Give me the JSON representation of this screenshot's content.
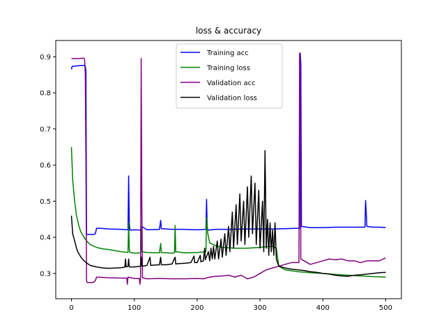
{
  "chart_data": {
    "type": "line",
    "title": "loss & accuracy",
    "xlabel": "",
    "ylabel": "",
    "xlim": [
      -25,
      525
    ],
    "ylim": [
      0.23,
      0.945
    ],
    "xticks": [
      0,
      100,
      200,
      300,
      400,
      500
    ],
    "yticks": [
      0.3,
      0.4,
      0.5,
      0.6,
      0.7,
      0.8,
      0.9
    ],
    "grid": false,
    "legend": "top-center",
    "series": [
      {
        "name": "Training acc",
        "color": "#0000ff",
        "points": [
          [
            0,
            0.865
          ],
          [
            1,
            0.873
          ],
          [
            5,
            0.874
          ],
          [
            10,
            0.875
          ],
          [
            15,
            0.876
          ],
          [
            20,
            0.876
          ],
          [
            22,
            0.874
          ],
          [
            23,
            0.86
          ],
          [
            24,
            0.408
          ],
          [
            30,
            0.408
          ],
          [
            36,
            0.408
          ],
          [
            38,
            0.41
          ],
          [
            40,
            0.425
          ],
          [
            45,
            0.425
          ],
          [
            60,
            0.423
          ],
          [
            80,
            0.422
          ],
          [
            90,
            0.421
          ],
          [
            91,
            0.57
          ],
          [
            92,
            0.44
          ],
          [
            93,
            0.42
          ],
          [
            100,
            0.421
          ],
          [
            110,
            0.42
          ],
          [
            111,
            0.41
          ],
          [
            112,
            0.43
          ],
          [
            120,
            0.421
          ],
          [
            140,
            0.422
          ],
          [
            142,
            0.447
          ],
          [
            143,
            0.424
          ],
          [
            160,
            0.422
          ],
          [
            180,
            0.422
          ],
          [
            200,
            0.421
          ],
          [
            214,
            0.422
          ],
          [
            215,
            0.505
          ],
          [
            216,
            0.43
          ],
          [
            217,
            0.42
          ],
          [
            230,
            0.422
          ],
          [
            250,
            0.422
          ],
          [
            280,
            0.423
          ],
          [
            300,
            0.423
          ],
          [
            320,
            0.423
          ],
          [
            340,
            0.424
          ],
          [
            360,
            0.425
          ],
          [
            363,
            0.425
          ],
          [
            364,
            0.91
          ],
          [
            365,
            0.88
          ],
          [
            366,
            0.43
          ],
          [
            380,
            0.427
          ],
          [
            400,
            0.427
          ],
          [
            420,
            0.428
          ],
          [
            440,
            0.428
          ],
          [
            460,
            0.428
          ],
          [
            467,
            0.428
          ],
          [
            468,
            0.502
          ],
          [
            469,
            0.47
          ],
          [
            470,
            0.43
          ],
          [
            480,
            0.428
          ],
          [
            490,
            0.428
          ],
          [
            500,
            0.427
          ]
        ]
      },
      {
        "name": "Training loss",
        "color": "#008000",
        "points": [
          [
            0,
            0.65
          ],
          [
            2,
            0.56
          ],
          [
            5,
            0.5
          ],
          [
            8,
            0.46
          ],
          [
            12,
            0.43
          ],
          [
            15,
            0.415
          ],
          [
            20,
            0.4
          ],
          [
            25,
            0.388
          ],
          [
            30,
            0.38
          ],
          [
            40,
            0.372
          ],
          [
            50,
            0.368
          ],
          [
            60,
            0.366
          ],
          [
            70,
            0.363
          ],
          [
            80,
            0.36
          ],
          [
            90,
            0.358
          ],
          [
            91,
            0.44
          ],
          [
            92,
            0.37
          ],
          [
            93,
            0.358
          ],
          [
            100,
            0.356
          ],
          [
            110,
            0.357
          ],
          [
            111,
            0.425
          ],
          [
            112,
            0.36
          ],
          [
            120,
            0.358
          ],
          [
            140,
            0.357
          ],
          [
            142,
            0.383
          ],
          [
            143,
            0.358
          ],
          [
            160,
            0.356
          ],
          [
            164,
            0.357
          ],
          [
            165,
            0.433
          ],
          [
            166,
            0.36
          ],
          [
            180,
            0.357
          ],
          [
            200,
            0.358
          ],
          [
            214,
            0.36
          ],
          [
            215,
            0.455
          ],
          [
            217,
            0.41
          ],
          [
            220,
            0.385
          ],
          [
            230,
            0.376
          ],
          [
            240,
            0.372
          ],
          [
            260,
            0.37
          ],
          [
            280,
            0.37
          ],
          [
            300,
            0.372
          ],
          [
            310,
            0.374
          ],
          [
            320,
            0.375
          ],
          [
            326,
            0.37
          ],
          [
            330,
            0.32
          ],
          [
            340,
            0.31
          ],
          [
            360,
            0.305
          ],
          [
            380,
            0.302
          ],
          [
            400,
            0.3
          ],
          [
            420,
            0.297
          ],
          [
            440,
            0.295
          ],
          [
            460,
            0.293
          ],
          [
            480,
            0.291
          ],
          [
            500,
            0.29
          ]
        ]
      },
      {
        "name": "Validation acc",
        "color": "#800080",
        "points": [
          [
            0,
            0.895
          ],
          [
            10,
            0.895
          ],
          [
            18,
            0.896
          ],
          [
            20,
            0.896
          ],
          [
            21,
            0.89
          ],
          [
            22,
            0.85
          ],
          [
            23,
            0.6
          ],
          [
            24,
            0.28
          ],
          [
            25,
            0.275
          ],
          [
            30,
            0.275
          ],
          [
            35,
            0.275
          ],
          [
            38,
            0.28
          ],
          [
            40,
            0.29
          ],
          [
            50,
            0.289
          ],
          [
            60,
            0.288
          ],
          [
            80,
            0.287
          ],
          [
            88,
            0.287
          ],
          [
            89,
            0.27
          ],
          [
            90,
            0.29
          ],
          [
            100,
            0.286
          ],
          [
            108,
            0.286
          ],
          [
            109,
            0.27
          ],
          [
            110,
            0.286
          ],
          [
            111,
            0.895
          ],
          [
            112,
            0.5
          ],
          [
            113,
            0.288
          ],
          [
            120,
            0.285
          ],
          [
            140,
            0.286
          ],
          [
            160,
            0.285
          ],
          [
            180,
            0.285
          ],
          [
            200,
            0.286
          ],
          [
            210,
            0.285
          ],
          [
            220,
            0.29
          ],
          [
            230,
            0.292
          ],
          [
            240,
            0.293
          ],
          [
            250,
            0.295
          ],
          [
            260,
            0.29
          ],
          [
            270,
            0.295
          ],
          [
            280,
            0.285
          ],
          [
            290,
            0.29
          ],
          [
            300,
            0.3
          ],
          [
            310,
            0.31
          ],
          [
            320,
            0.315
          ],
          [
            330,
            0.32
          ],
          [
            340,
            0.325
          ],
          [
            350,
            0.33
          ],
          [
            360,
            0.33
          ],
          [
            362,
            0.33
          ],
          [
            363,
            0.91
          ],
          [
            364,
            0.88
          ],
          [
            365,
            0.34
          ],
          [
            370,
            0.335
          ],
          [
            380,
            0.325
          ],
          [
            390,
            0.33
          ],
          [
            400,
            0.335
          ],
          [
            410,
            0.34
          ],
          [
            420,
            0.338
          ],
          [
            430,
            0.34
          ],
          [
            440,
            0.335
          ],
          [
            450,
            0.335
          ],
          [
            460,
            0.33
          ],
          [
            470,
            0.335
          ],
          [
            480,
            0.335
          ],
          [
            490,
            0.335
          ],
          [
            500,
            0.343
          ]
        ]
      },
      {
        "name": "Validation loss",
        "color": "#000000",
        "points": [
          [
            0,
            0.46
          ],
          [
            2,
            0.41
          ],
          [
            5,
            0.39
          ],
          [
            8,
            0.37
          ],
          [
            10,
            0.36
          ],
          [
            15,
            0.345
          ],
          [
            20,
            0.335
          ],
          [
            25,
            0.328
          ],
          [
            30,
            0.322
          ],
          [
            40,
            0.318
          ],
          [
            50,
            0.315
          ],
          [
            60,
            0.314
          ],
          [
            70,
            0.315
          ],
          [
            80,
            0.316
          ],
          [
            85,
            0.318
          ],
          [
            86,
            0.34
          ],
          [
            87,
            0.318
          ],
          [
            90,
            0.32
          ],
          [
            91,
            0.34
          ],
          [
            92,
            0.318
          ],
          [
            100,
            0.318
          ],
          [
            110,
            0.32
          ],
          [
            111,
            0.345
          ],
          [
            112,
            0.32
          ],
          [
            120,
            0.322
          ],
          [
            125,
            0.345
          ],
          [
            126,
            0.322
          ],
          [
            130,
            0.323
          ],
          [
            140,
            0.324
          ],
          [
            142,
            0.345
          ],
          [
            143,
            0.324
          ],
          [
            150,
            0.324
          ],
          [
            160,
            0.326
          ],
          [
            165,
            0.345
          ],
          [
            166,
            0.326
          ],
          [
            170,
            0.327
          ],
          [
            180,
            0.328
          ],
          [
            190,
            0.33
          ],
          [
            195,
            0.348
          ],
          [
            196,
            0.33
          ],
          [
            200,
            0.33
          ],
          [
            205,
            0.35
          ],
          [
            206,
            0.332
          ],
          [
            210,
            0.335
          ],
          [
            212,
            0.37
          ],
          [
            213,
            0.338
          ],
          [
            218,
            0.36
          ],
          [
            220,
            0.335
          ],
          [
            222,
            0.37
          ],
          [
            224,
            0.34
          ],
          [
            226,
            0.375
          ],
          [
            228,
            0.34
          ],
          [
            232,
            0.39
          ],
          [
            234,
            0.34
          ],
          [
            238,
            0.395
          ],
          [
            240,
            0.345
          ],
          [
            244,
            0.41
          ],
          [
            246,
            0.35
          ],
          [
            250,
            0.43
          ],
          [
            252,
            0.36
          ],
          [
            256,
            0.47
          ],
          [
            258,
            0.37
          ],
          [
            262,
            0.49
          ],
          [
            264,
            0.38
          ],
          [
            268,
            0.52
          ],
          [
            270,
            0.39
          ],
          [
            274,
            0.5
          ],
          [
            276,
            0.38
          ],
          [
            280,
            0.54
          ],
          [
            282,
            0.4
          ],
          [
            286,
            0.57
          ],
          [
            288,
            0.41
          ],
          [
            292,
            0.55
          ],
          [
            294,
            0.38
          ],
          [
            298,
            0.53
          ],
          [
            300,
            0.37
          ],
          [
            304,
            0.5
          ],
          [
            306,
            0.36
          ],
          [
            308,
            0.64
          ],
          [
            310,
            0.37
          ],
          [
            312,
            0.45
          ],
          [
            314,
            0.35
          ],
          [
            316,
            0.44
          ],
          [
            318,
            0.36
          ],
          [
            320,
            0.42
          ],
          [
            322,
            0.35
          ],
          [
            324,
            0.44
          ],
          [
            326,
            0.34
          ],
          [
            330,
            0.32
          ],
          [
            340,
            0.315
          ],
          [
            350,
            0.312
          ],
          [
            360,
            0.31
          ],
          [
            370,
            0.308
          ],
          [
            380,
            0.305
          ],
          [
            390,
            0.303
          ],
          [
            400,
            0.3
          ],
          [
            410,
            0.298
          ],
          [
            420,
            0.295
          ],
          [
            430,
            0.293
          ],
          [
            440,
            0.292
          ],
          [
            450,
            0.295
          ],
          [
            460,
            0.296
          ],
          [
            470,
            0.298
          ],
          [
            480,
            0.3
          ],
          [
            490,
            0.302
          ],
          [
            500,
            0.303
          ]
        ]
      }
    ]
  }
}
